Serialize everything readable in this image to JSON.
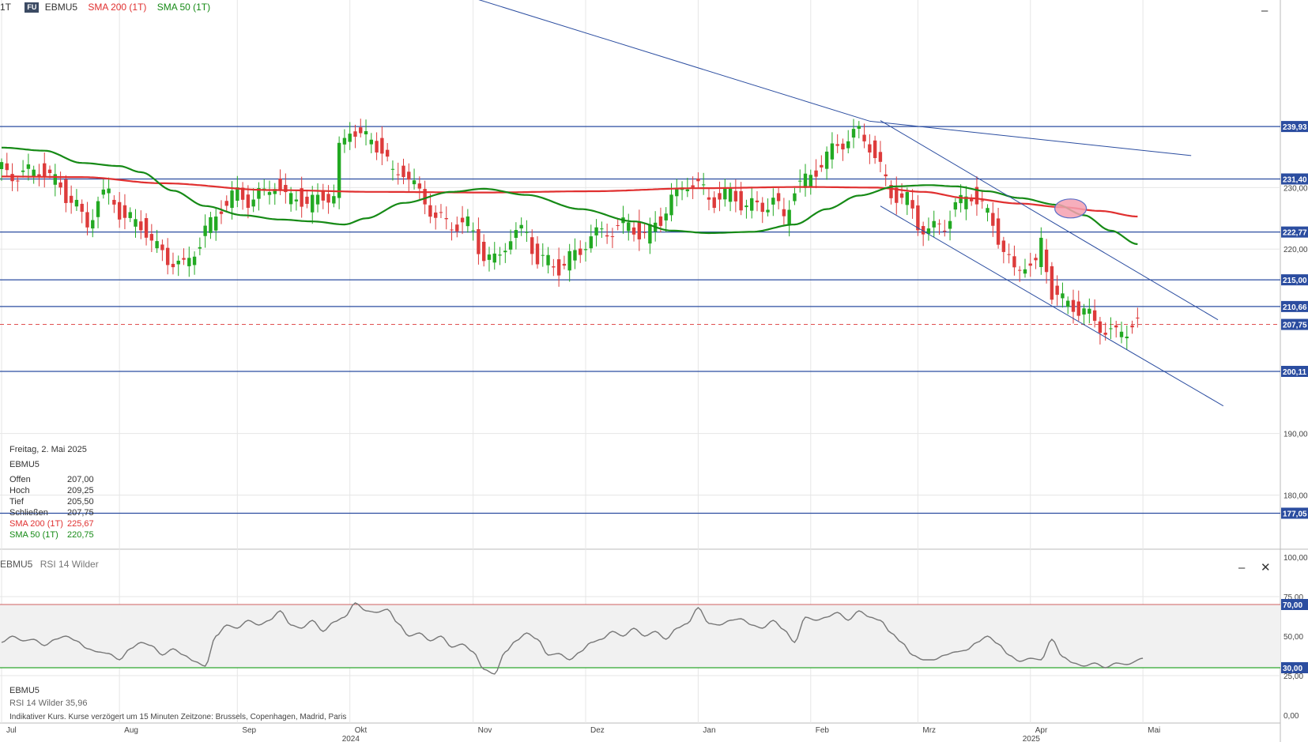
{
  "header": {
    "interval": "1T",
    "badge": "FU",
    "symbol": "EBMU5",
    "sma200_label": "SMA 200 (1T)",
    "sma50_label": "SMA 50 (1T)"
  },
  "info": {
    "date": "Freitag, 2. Mai 2025",
    "symbol": "EBMU5",
    "rows": [
      {
        "k": "Offen",
        "v": "207,00"
      },
      {
        "k": "Hoch",
        "v": "209,25"
      },
      {
        "k": "Tief",
        "v": "205,50"
      },
      {
        "k": "Schließen",
        "v": "207,75"
      }
    ],
    "sma200": {
      "k": "SMA 200 (1T)",
      "v": "225,67"
    },
    "sma50": {
      "k": "SMA 50 (1T)",
      "v": "220,75"
    }
  },
  "rsi_panel": {
    "title_symbol": "EBMU5",
    "title_indicator": "RSI 14 Wilder",
    "info_symbol": "EBMU5",
    "info_value_label": "RSI 14 Wilder  35,96",
    "disclaimer": "Indikativer Kurs. Kurse verzögert um 15 Minuten   Zeitzone: Brussels, Copenhagen, Madrid, Paris"
  },
  "controls": {
    "minimize": "–",
    "close": "✕"
  },
  "colors": {
    "up": "#22a922",
    "down": "#dd3b3b",
    "sma200": "#e03030",
    "sma50": "#168a16",
    "hline": "#2b4da0",
    "current": "#e05050",
    "oversold": "#2fa82f",
    "overbought": "#d06060",
    "rsi": "#777777",
    "marker": "#f4a0b0"
  },
  "chart_data": {
    "type": "candlestick",
    "price_axis": {
      "ylim": [
        171.2,
        260.5
      ],
      "ticks": [
        "180,00",
        "190,00",
        "220,00",
        "230,00"
      ]
    },
    "hlines": [
      {
        "value": 239.93,
        "label": "239,93"
      },
      {
        "value": 231.4,
        "label": "231,40"
      },
      {
        "value": 222.77,
        "label": "222,77"
      },
      {
        "value": 215.0,
        "label": "215,00"
      },
      {
        "value": 210.66,
        "label": "210,66"
      },
      {
        "value": 200.11,
        "label": "200,11"
      },
      {
        "value": 177.05,
        "label": "177,05"
      }
    ],
    "current": {
      "value": 207.75,
      "label": "207,75"
    },
    "months": [
      {
        "label": "Jul",
        "x": 0
      },
      {
        "label": "Aug",
        "x": 22
      },
      {
        "label": "Sep",
        "x": 44
      },
      {
        "label": "Okt",
        "x": 65,
        "year": "2024"
      },
      {
        "label": "Nov",
        "x": 88
      },
      {
        "label": "Dez",
        "x": 109
      },
      {
        "label": "Jan",
        "x": 130
      },
      {
        "label": "Feb",
        "x": 151
      },
      {
        "label": "Mrz",
        "x": 171
      },
      {
        "label": "Apr",
        "x": 192,
        "year": "2025"
      },
      {
        "label": "Mai",
        "x": 213
      }
    ],
    "sma50_keys": [
      [
        0,
        236.5
      ],
      [
        8,
        236
      ],
      [
        15,
        234
      ],
      [
        22,
        233.5
      ],
      [
        26,
        232.5
      ],
      [
        32,
        229.5
      ],
      [
        38,
        227
      ],
      [
        45,
        225.5
      ],
      [
        52,
        224.8
      ],
      [
        58,
        224.5
      ],
      [
        64,
        224
      ],
      [
        68,
        225
      ],
      [
        75,
        227.5
      ],
      [
        84,
        229.3
      ],
      [
        90,
        229.8
      ],
      [
        98,
        228.8
      ],
      [
        108,
        226.5
      ],
      [
        118,
        224.5
      ],
      [
        125,
        223
      ],
      [
        132,
        222.6
      ],
      [
        140,
        222.8
      ],
      [
        148,
        224
      ],
      [
        154,
        226.5
      ],
      [
        160,
        228.7
      ],
      [
        167,
        230.2
      ],
      [
        173,
        230.4
      ],
      [
        178,
        230.2
      ],
      [
        184,
        229.4
      ],
      [
        190,
        228.3
      ],
      [
        197,
        227.2
      ],
      [
        202,
        225.5
      ],
      [
        207,
        223
      ],
      [
        212,
        220.8
      ]
    ],
    "sma200_keys": [
      [
        0,
        231.8
      ],
      [
        15,
        231.7
      ],
      [
        30,
        230.7
      ],
      [
        50,
        229.6
      ],
      [
        70,
        229.3
      ],
      [
        90,
        229.2
      ],
      [
        110,
        229.4
      ],
      [
        130,
        229.9
      ],
      [
        150,
        230.1
      ],
      [
        163,
        230.0
      ],
      [
        172,
        229.3
      ],
      [
        180,
        228.3
      ],
      [
        190,
        227.4
      ],
      [
        198,
        226.8
      ],
      [
        205,
        226.2
      ],
      [
        212,
        225.3
      ]
    ],
    "trendlines": [
      {
        "from": [
          56,
          269.5
        ],
        "to": [
          162,
          240.8
        ]
      },
      {
        "from": [
          162,
          240.8
        ],
        "to": [
          222,
          235.2
        ]
      },
      {
        "from": [
          164,
          240.9
        ],
        "to": [
          227,
          208.5
        ]
      },
      {
        "from": [
          164,
          227.0
        ],
        "to": [
          228,
          194.5
        ]
      }
    ],
    "oval": {
      "x": 199.5,
      "y": 226.6
    },
    "rsi": {
      "ylim": [
        0,
        100
      ],
      "ticks": [
        "100,00",
        "75,00",
        "50,00",
        "25,00",
        "0,00"
      ],
      "overbought": {
        "value": 70,
        "label": "70,00"
      },
      "oversold": {
        "value": 30,
        "label": "30,00"
      },
      "keys": [
        [
          0,
          46
        ],
        [
          2,
          50
        ],
        [
          4,
          47
        ],
        [
          6,
          48
        ],
        [
          8,
          44
        ],
        [
          10,
          48
        ],
        [
          12,
          50
        ],
        [
          14,
          47
        ],
        [
          16,
          42
        ],
        [
          18,
          40
        ],
        [
          20,
          39
        ],
        [
          22,
          35
        ],
        [
          24,
          42
        ],
        [
          26,
          46
        ],
        [
          28,
          44
        ],
        [
          30,
          38
        ],
        [
          32,
          42
        ],
        [
          34,
          38
        ],
        [
          36,
          34
        ],
        [
          38,
          31
        ],
        [
          40,
          50
        ],
        [
          42,
          57
        ],
        [
          44,
          55
        ],
        [
          46,
          60
        ],
        [
          48,
          57
        ],
        [
          50,
          60
        ],
        [
          52,
          66
        ],
        [
          54,
          57
        ],
        [
          56,
          55
        ],
        [
          58,
          60
        ],
        [
          60,
          53
        ],
        [
          62,
          59
        ],
        [
          64,
          62
        ],
        [
          66,
          71
        ],
        [
          68,
          66
        ],
        [
          70,
          65
        ],
        [
          72,
          67
        ],
        [
          74,
          58
        ],
        [
          76,
          50
        ],
        [
          78,
          52
        ],
        [
          80,
          47
        ],
        [
          82,
          50
        ],
        [
          84,
          43
        ],
        [
          86,
          45
        ],
        [
          88,
          40
        ],
        [
          90,
          29
        ],
        [
          92,
          26
        ],
        [
          94,
          40
        ],
        [
          96,
          47
        ],
        [
          98,
          52
        ],
        [
          100,
          48
        ],
        [
          102,
          38
        ],
        [
          104,
          39
        ],
        [
          106,
          35
        ],
        [
          108,
          40
        ],
        [
          110,
          46
        ],
        [
          112,
          48
        ],
        [
          114,
          53
        ],
        [
          116,
          50
        ],
        [
          118,
          55
        ],
        [
          120,
          50
        ],
        [
          122,
          53
        ],
        [
          124,
          48
        ],
        [
          126,
          55
        ],
        [
          128,
          58
        ],
        [
          130,
          68
        ],
        [
          132,
          58
        ],
        [
          134,
          57
        ],
        [
          136,
          60
        ],
        [
          138,
          61
        ],
        [
          140,
          57
        ],
        [
          142,
          55
        ],
        [
          144,
          60
        ],
        [
          146,
          54
        ],
        [
          148,
          46
        ],
        [
          150,
          62
        ],
        [
          152,
          60
        ],
        [
          154,
          62
        ],
        [
          156,
          65
        ],
        [
          158,
          60
        ],
        [
          160,
          66
        ],
        [
          162,
          62
        ],
        [
          164,
          60
        ],
        [
          166,
          52
        ],
        [
          168,
          46
        ],
        [
          170,
          38
        ],
        [
          172,
          35
        ],
        [
          174,
          35
        ],
        [
          176,
          38
        ],
        [
          178,
          40
        ],
        [
          180,
          41
        ],
        [
          182,
          46
        ],
        [
          184,
          50
        ],
        [
          186,
          45
        ],
        [
          188,
          38
        ],
        [
          190,
          34
        ],
        [
          192,
          36
        ],
        [
          194,
          35
        ],
        [
          196,
          48
        ],
        [
          198,
          37
        ],
        [
          200,
          33
        ],
        [
          202,
          31
        ],
        [
          204,
          33
        ],
        [
          206,
          30
        ],
        [
          208,
          33
        ],
        [
          210,
          32
        ],
        [
          213,
          36
        ]
      ]
    }
  }
}
